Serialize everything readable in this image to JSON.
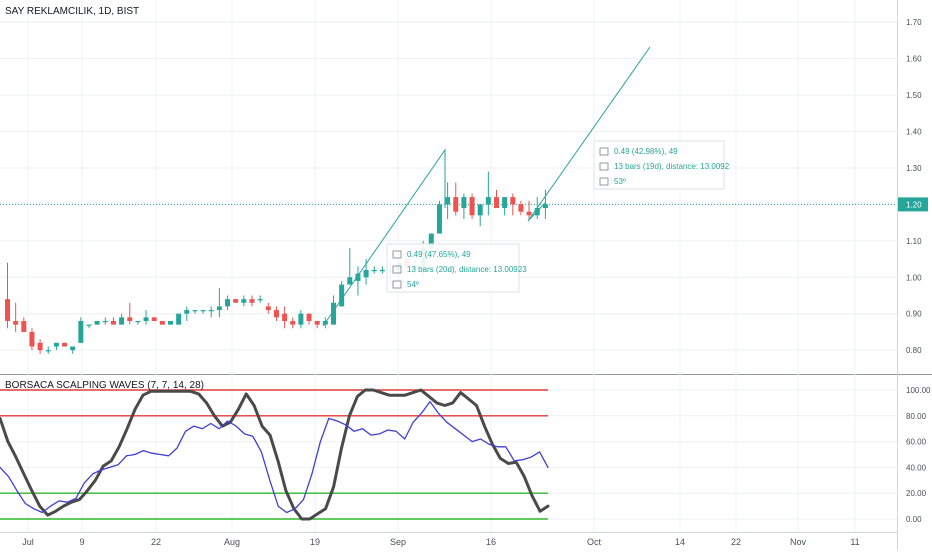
{
  "header": {
    "symbol_title": "SAY REKLAMCILIK, 1D, BIST",
    "indicator_title": "BORSACA SCALPING WAVES (7, 7, 14, 28)"
  },
  "colors": {
    "up": "#26a69a",
    "down": "#ef5350",
    "drawing": "#26a69a",
    "drawing_text": "#26a69a",
    "wave_black": "#4a4a4a",
    "wave_blue": "#3f3fd8",
    "line_red": "#e23b3b",
    "line_green": "#2db82d",
    "price_badge": "#26a69a",
    "grid": "#eef0f3",
    "axis_text": "#4a4f5a"
  },
  "chart_data": [
    {
      "type": "candlestick",
      "title": "SAY REKLAMCILIK, 1D, BIST",
      "x_ticks": [
        "Jul",
        "9",
        "22",
        "Aug",
        "19",
        "Sep",
        "16",
        "Oct",
        "14",
        "22",
        "Nov",
        "11"
      ],
      "y_ticks": [
        "0.80",
        "0.90",
        "1.00",
        "1.10",
        "1.20",
        "1.30",
        "1.40",
        "1.50",
        "1.60",
        "1.70"
      ],
      "ylim": [
        0.74,
        1.75
      ],
      "last_price": "1.20",
      "candles": [
        {
          "o": 0.94,
          "h": 1.04,
          "l": 0.86,
          "c": 0.88
        },
        {
          "o": 0.88,
          "h": 0.93,
          "l": 0.85,
          "c": 0.87
        },
        {
          "o": 0.88,
          "h": 0.89,
          "l": 0.85,
          "c": 0.85
        },
        {
          "o": 0.85,
          "h": 0.86,
          "l": 0.8,
          "c": 0.81
        },
        {
          "o": 0.82,
          "h": 0.83,
          "l": 0.79,
          "c": 0.8
        },
        {
          "o": 0.8,
          "h": 0.81,
          "l": 0.79,
          "c": 0.8
        },
        {
          "o": 0.81,
          "h": 0.82,
          "l": 0.8,
          "c": 0.82
        },
        {
          "o": 0.82,
          "h": 0.82,
          "l": 0.81,
          "c": 0.81
        },
        {
          "o": 0.8,
          "h": 0.81,
          "l": 0.79,
          "c": 0.81
        },
        {
          "o": 0.82,
          "h": 0.89,
          "l": 0.82,
          "c": 0.88
        },
        {
          "o": 0.87,
          "h": 0.87,
          "l": 0.86,
          "c": 0.87
        },
        {
          "o": 0.87,
          "h": 0.88,
          "l": 0.87,
          "c": 0.88
        },
        {
          "o": 0.88,
          "h": 0.89,
          "l": 0.87,
          "c": 0.88
        },
        {
          "o": 0.88,
          "h": 0.89,
          "l": 0.87,
          "c": 0.87
        },
        {
          "o": 0.87,
          "h": 0.9,
          "l": 0.87,
          "c": 0.89
        },
        {
          "o": 0.89,
          "h": 0.93,
          "l": 0.87,
          "c": 0.88
        },
        {
          "o": 0.88,
          "h": 0.88,
          "l": 0.87,
          "c": 0.88
        },
        {
          "o": 0.88,
          "h": 0.91,
          "l": 0.87,
          "c": 0.89
        },
        {
          "o": 0.89,
          "h": 0.89,
          "l": 0.88,
          "c": 0.88
        },
        {
          "o": 0.88,
          "h": 0.88,
          "l": 0.87,
          "c": 0.87
        },
        {
          "o": 0.87,
          "h": 0.88,
          "l": 0.87,
          "c": 0.88
        },
        {
          "o": 0.87,
          "h": 0.9,
          "l": 0.87,
          "c": 0.9
        },
        {
          "o": 0.9,
          "h": 0.92,
          "l": 0.88,
          "c": 0.91
        },
        {
          "o": 0.91,
          "h": 0.91,
          "l": 0.9,
          "c": 0.91
        },
        {
          "o": 0.91,
          "h": 0.91,
          "l": 0.9,
          "c": 0.91
        },
        {
          "o": 0.91,
          "h": 0.92,
          "l": 0.89,
          "c": 0.91
        },
        {
          "o": 0.91,
          "h": 0.97,
          "l": 0.89,
          "c": 0.92
        },
        {
          "o": 0.92,
          "h": 0.95,
          "l": 0.91,
          "c": 0.94
        },
        {
          "o": 0.94,
          "h": 0.94,
          "l": 0.93,
          "c": 0.93
        },
        {
          "o": 0.93,
          "h": 0.95,
          "l": 0.92,
          "c": 0.94
        },
        {
          "o": 0.94,
          "h": 0.95,
          "l": 0.92,
          "c": 0.93
        },
        {
          "o": 0.94,
          "h": 0.95,
          "l": 0.93,
          "c": 0.94
        },
        {
          "o": 0.92,
          "h": 0.93,
          "l": 0.9,
          "c": 0.91
        },
        {
          "o": 0.91,
          "h": 0.92,
          "l": 0.88,
          "c": 0.89
        },
        {
          "o": 0.9,
          "h": 0.92,
          "l": 0.86,
          "c": 0.88
        },
        {
          "o": 0.88,
          "h": 0.89,
          "l": 0.86,
          "c": 0.87
        },
        {
          "o": 0.87,
          "h": 0.91,
          "l": 0.86,
          "c": 0.9
        },
        {
          "o": 0.9,
          "h": 0.9,
          "l": 0.87,
          "c": 0.88
        },
        {
          "o": 0.88,
          "h": 0.88,
          "l": 0.86,
          "c": 0.87
        },
        {
          "o": 0.87,
          "h": 0.89,
          "l": 0.86,
          "c": 0.88
        },
        {
          "o": 0.87,
          "h": 0.95,
          "l": 0.87,
          "c": 0.93
        },
        {
          "o": 0.92,
          "h": 0.99,
          "l": 0.92,
          "c": 0.98
        },
        {
          "o": 0.98,
          "h": 1.08,
          "l": 0.98,
          "c": 1.0
        },
        {
          "o": 0.99,
          "h": 1.03,
          "l": 0.95,
          "c": 1.01
        },
        {
          "o": 1.0,
          "h": 1.05,
          "l": 0.98,
          "c": 1.02
        },
        {
          "o": 1.02,
          "h": 1.03,
          "l": 1.01,
          "c": 1.02
        },
        {
          "o": 1.02,
          "h": 1.03,
          "l": 1.01,
          "c": 1.02
        },
        {
          "o": 1.02,
          "h": 1.05,
          "l": 0.98,
          "c": 1.02
        },
        {
          "o": 1.02,
          "h": 1.07,
          "l": 0.99,
          "c": 1.04
        },
        {
          "o": 1.05,
          "h": 1.08,
          "l": 1.02,
          "c": 1.03
        },
        {
          "o": 1.02,
          "h": 1.05,
          "l": 1.01,
          "c": 1.03
        },
        {
          "o": 1.02,
          "h": 1.1,
          "l": 1.0,
          "c": 1.08
        },
        {
          "o": 1.08,
          "h": 1.12,
          "l": 1.07,
          "c": 1.12
        },
        {
          "o": 1.12,
          "h": 1.21,
          "l": 1.12,
          "c": 1.2
        },
        {
          "o": 1.2,
          "h": 1.26,
          "l": 1.16,
          "c": 1.22
        },
        {
          "o": 1.22,
          "h": 1.26,
          "l": 1.17,
          "c": 1.18
        },
        {
          "o": 1.19,
          "h": 1.23,
          "l": 1.16,
          "c": 1.22
        },
        {
          "o": 1.22,
          "h": 1.23,
          "l": 1.16,
          "c": 1.17
        },
        {
          "o": 1.17,
          "h": 1.2,
          "l": 1.14,
          "c": 1.2
        },
        {
          "o": 1.2,
          "h": 1.29,
          "l": 1.17,
          "c": 1.22
        },
        {
          "o": 1.22,
          "h": 1.24,
          "l": 1.19,
          "c": 1.19
        },
        {
          "o": 1.19,
          "h": 1.21,
          "l": 1.17,
          "c": 1.22
        },
        {
          "o": 1.22,
          "h": 1.23,
          "l": 1.17,
          "c": 1.2
        },
        {
          "o": 1.2,
          "h": 1.21,
          "l": 1.17,
          "c": 1.18
        },
        {
          "o": 1.18,
          "h": 1.21,
          "l": 1.16,
          "c": 1.17
        },
        {
          "o": 1.17,
          "h": 1.22,
          "l": 1.16,
          "c": 1.19
        },
        {
          "o": 1.19,
          "h": 1.24,
          "l": 1.16,
          "c": 1.2
        }
      ],
      "projection_1": {
        "label_lines": [
          "0.49 (47.65%), 49",
          "13 bars (20d), distance: 13.00923",
          "54º"
        ],
        "label_shown": [
          "0.49 (47.65%), 49",
          "13 bars (20d), distance: 13.00923",
          "54º"
        ]
      },
      "projection_2": {
        "label_lines": [
          "0.49 (42.98%), 49",
          "13 bars (19d), distance: 13.0092",
          "53º"
        ],
        "label_shown": [
          "0.49 (42.98%), 49",
          "13 bars (19d), distance: 13.0092",
          "53º"
        ]
      }
    },
    {
      "type": "line",
      "title": "BORSACA SCALPING WAVES (7, 7, 14, 28)",
      "y_ticks": [
        "100.00",
        "80.00",
        "60.00",
        "40.00",
        "20.00",
        "0.00"
      ],
      "ylim": [
        -4,
        104
      ],
      "levels": [
        {
          "value": 100,
          "color": "#e23b3b"
        },
        {
          "value": 80,
          "color": "#e23b3b"
        },
        {
          "value": 20,
          "color": "#2db82d"
        },
        {
          "value": 0,
          "color": "#2db82d"
        }
      ],
      "series": [
        {
          "color": "#4a4a4a",
          "values": [
            78,
            60,
            48,
            35,
            22,
            10,
            3,
            6,
            10,
            13,
            15,
            22,
            30,
            41,
            45,
            56,
            70,
            85,
            96,
            99,
            99,
            99,
            99,
            99,
            99,
            97,
            90,
            80,
            72,
            75,
            85,
            97,
            88,
            72,
            65,
            45,
            22,
            8,
            0,
            0,
            4,
            8,
            25,
            55,
            80,
            95,
            100,
            100,
            98,
            96,
            96,
            96,
            98,
            100,
            95,
            90,
            88,
            90,
            98,
            93,
            88,
            72,
            58,
            47,
            43,
            44,
            33,
            18,
            6,
            10
          ]
        },
        {
          "color": "#3f3fd8",
          "values": [
            40,
            33,
            22,
            12,
            8,
            5,
            10,
            14,
            13,
            16,
            28,
            35,
            38,
            40,
            42,
            49,
            50,
            53,
            51,
            50,
            49,
            55,
            68,
            72,
            70,
            74,
            70,
            76,
            72,
            66,
            64,
            52,
            30,
            10,
            5,
            8,
            15,
            35,
            60,
            78,
            76,
            73,
            68,
            70,
            65,
            66,
            69,
            68,
            62,
            75,
            82,
            91,
            82,
            75,
            70,
            65,
            60,
            62,
            58,
            56,
            56,
            45,
            46,
            48,
            52,
            40
          ]
        }
      ]
    }
  ]
}
